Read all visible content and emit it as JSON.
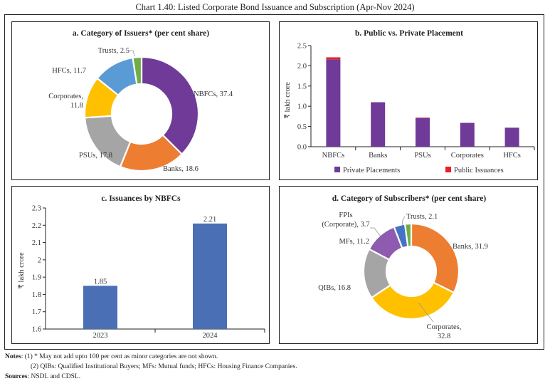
{
  "title": "Chart 1.40: Listed Corporate Bond Issuance and Subscription (Apr-Nov 2024)",
  "chart_data": [
    {
      "id": "a",
      "type": "pie",
      "variant": "donut",
      "title": "a. Category of Issuers* (per cent share)",
      "categories": [
        "NBFCs",
        "Banks",
        "PSUs",
        "Corporates",
        "HFCs",
        "Trusts"
      ],
      "values": [
        37.4,
        18.6,
        17.8,
        11.8,
        11.7,
        2.5
      ],
      "labels": [
        "NBFCs, 37.4",
        "Banks, 18.6",
        "PSUs, 17.8",
        "Corporates,",
        "HFCs, 11.7",
        "Trusts, 2.5"
      ],
      "label_lines2": [
        "",
        "",
        "",
        "11.8",
        "",
        ""
      ],
      "colors": [
        "#6f3a98",
        "#ed7d31",
        "#a5a5a5",
        "#ffc000",
        "#5b9bd5",
        "#70ad47"
      ]
    },
    {
      "id": "b",
      "type": "bar",
      "stacked": true,
      "title": "b. Public vs. Private Placement",
      "categories": [
        "NBFCs",
        "Banks",
        "PSUs",
        "Corporates",
        "HFCs"
      ],
      "series": [
        {
          "name": "Private Placements",
          "values": [
            2.16,
            1.1,
            0.71,
            0.59,
            0.47
          ],
          "color": "#6f3a98"
        },
        {
          "name": "Public Issuances",
          "values": [
            0.05,
            0.0,
            0.01,
            0.0,
            0.0
          ],
          "color": "#e8202a"
        }
      ],
      "ylabel": "₹ lakh crore",
      "ylim": [
        0,
        2.5
      ],
      "yticks": [
        "0.0",
        "0.5",
        "1.0",
        "1.5",
        "2.0",
        "2.5"
      ],
      "legend": "bottom"
    },
    {
      "id": "c",
      "type": "bar",
      "title": "c. Issuances by NBFCs",
      "categories": [
        "2023",
        "2024"
      ],
      "values": [
        1.85,
        2.21
      ],
      "data_labels": [
        "1.85",
        "2.21"
      ],
      "color": "#4a6fb5",
      "ylabel": "₹ lakh crore",
      "ylim": [
        1.6,
        2.3
      ],
      "yticks": [
        "1.6",
        "1.7",
        "1.8",
        "1.9",
        "2",
        "2.1",
        "2.2",
        "2.3"
      ]
    },
    {
      "id": "d",
      "type": "pie",
      "variant": "donut",
      "title": "d. Category of Subscribers* (per cent share)",
      "categories": [
        "Banks",
        "Corporates",
        "QIBs",
        "MFs",
        "FPIs (Corporate)",
        "Trusts"
      ],
      "values": [
        31.9,
        32.8,
        16.8,
        11.2,
        3.7,
        2.1
      ],
      "labels": [
        "Banks, 31.9",
        "Corporates,",
        "QIBs, 16.8",
        "MFs, 11.2",
        "FPIs",
        "Trusts, 2.1"
      ],
      "label_lines2": [
        "",
        "32.8",
        "",
        "",
        "(Corporate), 3.7",
        ""
      ],
      "colors": [
        "#ed7d31",
        "#ffc000",
        "#a5a5a5",
        "#8e5bb0",
        "#4472c4",
        "#70ad47"
      ]
    }
  ],
  "notes": {
    "notes_label": "Notes",
    "note1": ": (1) * May not add upto 100 per cent as minor categories are not shown.",
    "note2": "(2) QIBs: Qualified Institutional Buyers; MFs: Mutual funds; HFCs: Housing Finance Companies.",
    "sources_label": "Sources",
    "sources": ": NSDL and CDSL."
  }
}
